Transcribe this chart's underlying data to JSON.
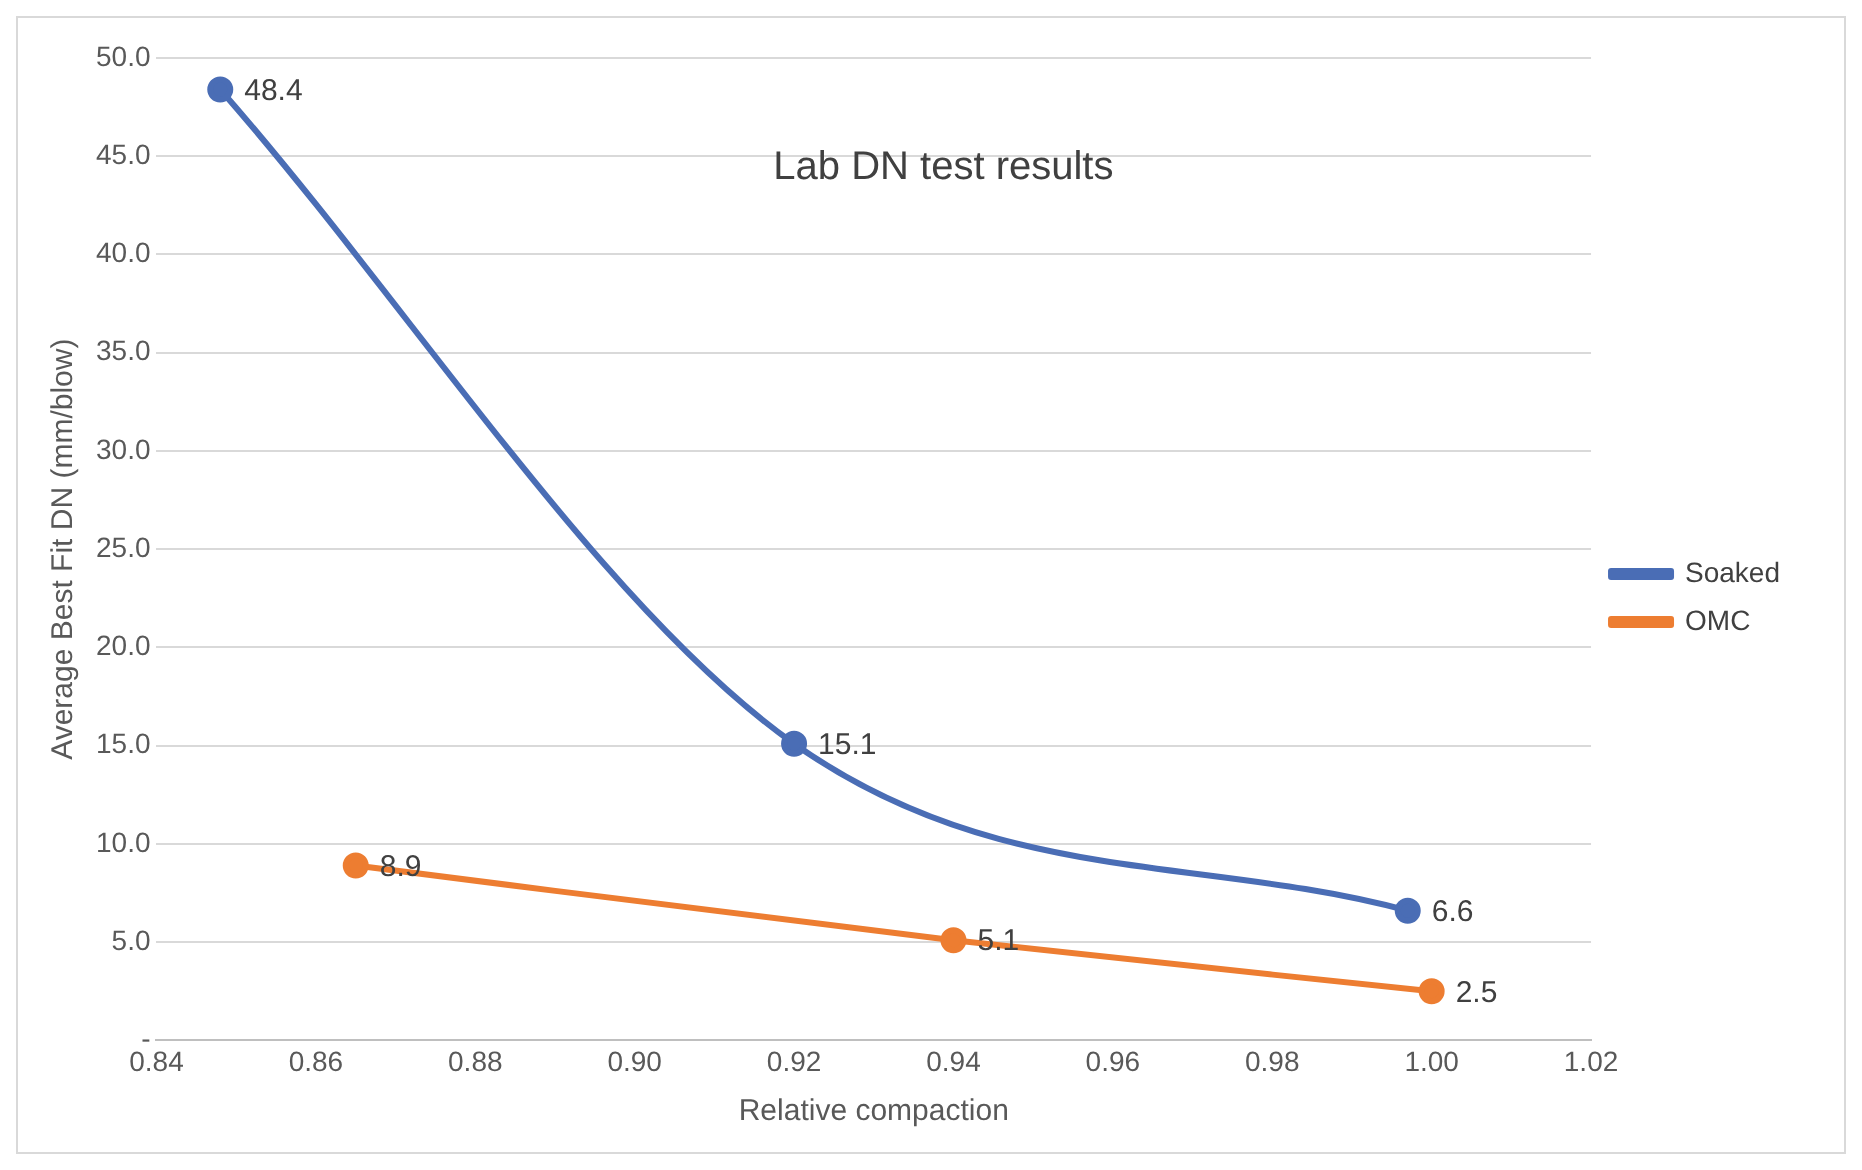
{
  "chart_data": {
    "type": "line",
    "title": "Lab DN test results",
    "xlabel": "Relative compaction",
    "ylabel": "Average Best Fit DN (mm/blow)",
    "series": [
      {
        "name": "Soaked",
        "color": "#4a6db5",
        "x": [
          0.848,
          0.92,
          0.997
        ],
        "values": [
          48.4,
          15.1,
          6.6
        ]
      },
      {
        "name": "OMC",
        "color": "#ed7d31",
        "x": [
          0.865,
          0.94,
          1.0
        ],
        "values": [
          8.9,
          5.1,
          2.5
        ]
      }
    ],
    "xlim": [
      0.84,
      1.02
    ],
    "xticks": [
      {
        "value": 0.84,
        "label": "0.84"
      },
      {
        "value": 0.86,
        "label": "0.86"
      },
      {
        "value": 0.88,
        "label": "0.88"
      },
      {
        "value": 0.9,
        "label": "0.90"
      },
      {
        "value": 0.92,
        "label": "0.92"
      },
      {
        "value": 0.94,
        "label": "0.94"
      },
      {
        "value": 0.96,
        "label": "0.96"
      },
      {
        "value": 0.98,
        "label": "0.98"
      },
      {
        "value": 1.0,
        "label": "1.00"
      },
      {
        "value": 1.02,
        "label": "1.02"
      }
    ],
    "ylim": [
      0,
      50
    ],
    "yticks": [
      {
        "value": 0,
        "label": "-"
      },
      {
        "value": 5,
        "label": "5.0"
      },
      {
        "value": 10,
        "label": "10.0"
      },
      {
        "value": 15,
        "label": "15.0"
      },
      {
        "value": 20,
        "label": "20.0"
      },
      {
        "value": 25,
        "label": "25.0"
      },
      {
        "value": 30,
        "label": "30.0"
      },
      {
        "value": 35,
        "label": "35.0"
      },
      {
        "value": 40,
        "label": "40.0"
      },
      {
        "value": 45,
        "label": "45.0"
      },
      {
        "value": 50,
        "label": "50.0"
      }
    ],
    "grid": "y",
    "legend": "right",
    "marker": "circle",
    "line_style": "solid",
    "data_labels": true
  }
}
